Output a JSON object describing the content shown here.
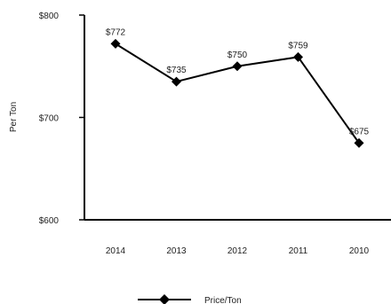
{
  "chart_data": {
    "type": "line",
    "categories": [
      "2014",
      "2013",
      "2012",
      "2011",
      "2010"
    ],
    "series": [
      {
        "name": "Price/Ton",
        "values": [
          772,
          735,
          750,
          759,
          675
        ]
      }
    ],
    "data_labels": [
      "$772",
      "$735",
      "$750",
      "$759",
      "$675"
    ],
    "ylabel": "Per Ton",
    "ylim": [
      600,
      800
    ],
    "yticks": [
      600,
      700,
      800
    ],
    "ytick_labels": [
      "$600",
      "$700",
      "$800"
    ],
    "grid": false,
    "legend_position": "bottom",
    "line_color": "#000000",
    "marker": "diamond"
  }
}
